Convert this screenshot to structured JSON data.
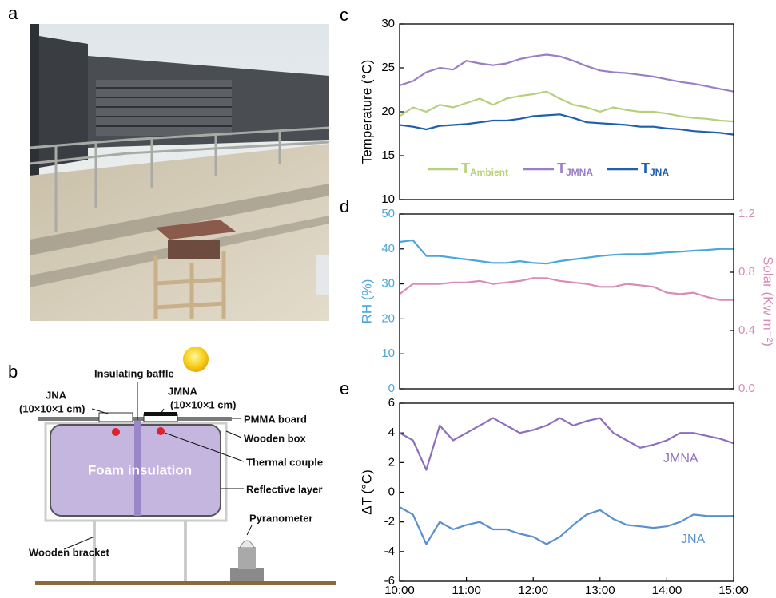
{
  "photo": {
    "panel_label": "a"
  },
  "diagram": {
    "panel_label": "b",
    "labels": {
      "baffle": "Insulating baffle",
      "jna": "JNA",
      "jna_size": "(10×10×1 cm)",
      "jmna": "JMNA",
      "jmna_size": "(10×10×1 cm)",
      "pmma": "PMMA board",
      "box": "Wooden box",
      "foam": "Foam insulation",
      "couple": "Thermal couple",
      "reflective": "Reflective layer",
      "bracket": "Wooden bracket",
      "pyranometer": "Pyranometer"
    }
  },
  "chart_data": [
    {
      "type": "line",
      "panel_label": "c",
      "ylabel": "Temperature (°C)",
      "x": [
        10,
        10.2,
        10.4,
        10.6,
        10.8,
        11,
        11.2,
        11.4,
        11.6,
        11.8,
        12,
        12.2,
        12.4,
        12.6,
        12.8,
        13,
        13.2,
        13.4,
        13.6,
        13.8,
        14,
        14.2,
        14.4,
        14.6,
        14.8,
        15
      ],
      "xlim": [
        10,
        15
      ],
      "ylim": [
        10,
        30
      ],
      "yticks": [
        10,
        15,
        20,
        25,
        30
      ],
      "series": [
        {
          "name": "T",
          "name_sub": "Ambient",
          "color": "#b6d07c",
          "values": [
            19.5,
            20.5,
            20,
            20.8,
            20.5,
            21,
            21.5,
            20.8,
            21.5,
            21.8,
            22,
            22.3,
            21.5,
            20.8,
            20.5,
            20,
            20.5,
            20.2,
            20,
            20,
            19.8,
            19.5,
            19.3,
            19.2,
            19,
            18.9
          ]
        },
        {
          "name": "T",
          "name_sub": "JMNA",
          "color": "#9a7ec6",
          "values": [
            23,
            23.5,
            24.5,
            25,
            24.8,
            25.8,
            25.5,
            25.3,
            25.5,
            26,
            26.3,
            26.5,
            26.3,
            25.8,
            25.2,
            24.7,
            24.5,
            24.4,
            24.2,
            24,
            23.7,
            23.4,
            23.2,
            22.9,
            22.6,
            22.3
          ]
        },
        {
          "name": "T",
          "name_sub": "JNA",
          "color": "#1e5fae",
          "values": [
            18.5,
            18.3,
            18,
            18.4,
            18.5,
            18.6,
            18.8,
            19,
            19,
            19.2,
            19.5,
            19.6,
            19.7,
            19.3,
            18.8,
            18.7,
            18.6,
            18.5,
            18.3,
            18.3,
            18.1,
            18,
            17.8,
            17.7,
            17.6,
            17.4
          ]
        }
      ]
    },
    {
      "type": "line",
      "panel_label": "d",
      "ylabel": "RH (%)",
      "y2label": "Solar (Kw m⁻²)",
      "x": [
        10,
        10.2,
        10.4,
        10.6,
        10.8,
        11,
        11.2,
        11.4,
        11.6,
        11.8,
        12,
        12.2,
        12.4,
        12.6,
        12.8,
        13,
        13.2,
        13.4,
        13.6,
        13.8,
        14,
        14.2,
        14.4,
        14.6,
        14.8,
        15
      ],
      "xlim": [
        10,
        15
      ],
      "ylim": [
        0,
        50
      ],
      "yticks": [
        0,
        10,
        20,
        30,
        40,
        50
      ],
      "y2lim": [
        0,
        1.2
      ],
      "y2ticks": [
        {
          "value": 0,
          "label": "0.0"
        },
        0.4,
        0.8,
        1.2
      ],
      "series": [
        {
          "color": "#4aa7da",
          "values": [
            42,
            42.5,
            38,
            38,
            37.5,
            37,
            36.5,
            36,
            36,
            36.5,
            36,
            35.8,
            36.5,
            37,
            37.5,
            38,
            38.3,
            38.5,
            38.5,
            38.7,
            39,
            39.2,
            39.5,
            39.7,
            40,
            40
          ]
        },
        {
          "color": "#d98cb6",
          "axis": "y2",
          "values": [
            0.65,
            0.72,
            0.72,
            0.72,
            0.73,
            0.73,
            0.74,
            0.72,
            0.73,
            0.74,
            0.76,
            0.76,
            0.74,
            0.73,
            0.72,
            0.7,
            0.7,
            0.72,
            0.71,
            0.7,
            0.66,
            0.65,
            0.66,
            0.63,
            0.61,
            0.61
          ]
        }
      ]
    },
    {
      "type": "line",
      "panel_label": "e",
      "ylabel": "ΔT (°C)",
      "x": [
        10,
        10.2,
        10.4,
        10.6,
        10.8,
        11,
        11.2,
        11.4,
        11.6,
        11.8,
        12,
        12.2,
        12.4,
        12.6,
        12.8,
        13,
        13.2,
        13.4,
        13.6,
        13.8,
        14,
        14.2,
        14.4,
        14.6,
        14.8,
        15
      ],
      "xlim": [
        10,
        15
      ],
      "xticks": [
        {
          "value": 10,
          "label": "10:00"
        },
        {
          "value": 11,
          "label": "11:00"
        },
        {
          "value": 12,
          "label": "12:00"
        },
        {
          "value": 13,
          "label": "13:00"
        },
        {
          "value": 14,
          "label": "14:00"
        },
        {
          "value": 15,
          "label": "15:00"
        }
      ],
      "ylim": [
        -6,
        6
      ],
      "yticks": [
        -6,
        -4,
        -2,
        0,
        2,
        4,
        6
      ],
      "series": [
        {
          "name": "JMNA",
          "color": "#8e6fbd",
          "values": [
            4,
            3.5,
            1.5,
            4.5,
            3.5,
            4,
            4.5,
            5,
            4.5,
            4,
            4.2,
            4.5,
            5,
            4.5,
            4.8,
            5,
            4,
            3.5,
            3,
            3.2,
            3.5,
            4,
            4,
            3.8,
            3.6,
            3.3
          ]
        },
        {
          "name": "JNA",
          "color": "#5a8fd0",
          "values": [
            -1,
            -1.5,
            -3.5,
            -2,
            -2.5,
            -2.2,
            -2,
            -2.5,
            -2.5,
            -2.8,
            -3,
            -3.5,
            -3,
            -2.2,
            -1.5,
            -1.2,
            -1.8,
            -2.2,
            -2.3,
            -2.4,
            -2.3,
            -2,
            -1.5,
            -1.6,
            -1.6,
            -1.6
          ]
        }
      ]
    }
  ]
}
